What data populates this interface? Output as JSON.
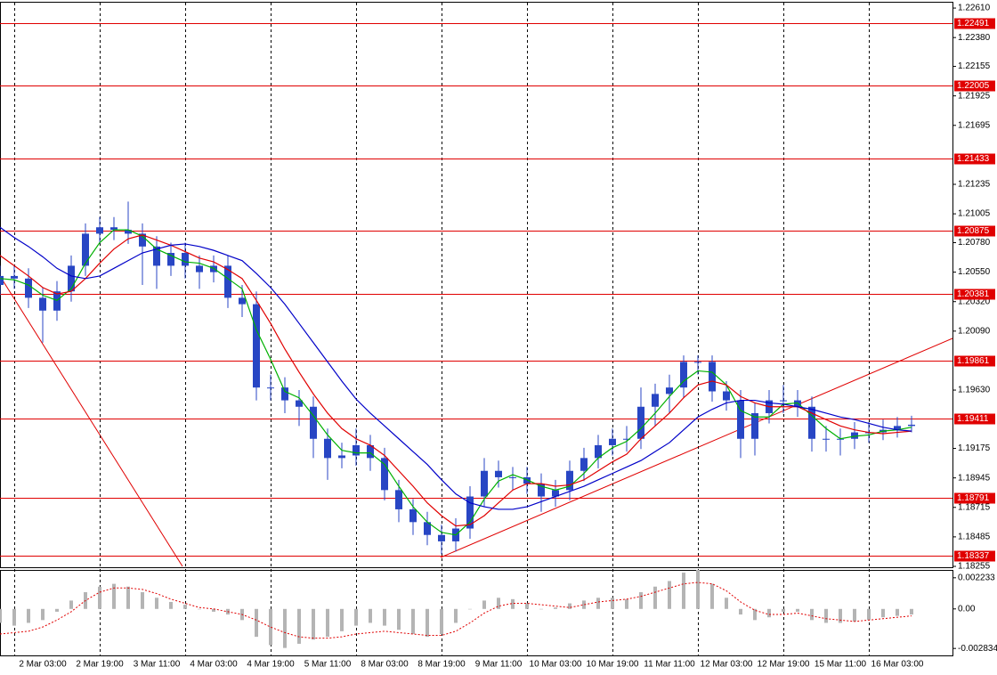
{
  "chart_data": [
    {
      "type": "candlestick",
      "categories": [
        null,
        null,
        null,
        "2 Mar 03:00",
        null,
        null,
        null,
        "2 Mar 19:00",
        null,
        null,
        null,
        "3 Mar 11:00",
        null,
        null,
        null,
        "4 Mar 03:00",
        null,
        null,
        null,
        "4 Mar 19:00",
        null,
        null,
        null,
        "5 Mar 11:00",
        null,
        null,
        null,
        "8 Mar 03:00",
        null,
        null,
        null,
        "8 Mar 19:00",
        null,
        null,
        null,
        "9 Mar 11:00",
        null,
        null,
        null,
        "10 Mar 03:00",
        null,
        null,
        null,
        "10 Mar 19:00",
        null,
        null,
        null,
        "11 Mar 11:00",
        null,
        null,
        null,
        "12 Mar 03:00",
        null,
        null,
        null,
        "12 Mar 19:00",
        null,
        null,
        null,
        "15 Mar 11:00",
        null,
        null,
        null,
        "16 Mar 03:00",
        null
      ],
      "open": [
        1.2045,
        1.2052,
        1.205,
        1.2035,
        1.2025,
        1.204,
        1.206,
        1.2085,
        1.209,
        1.2088,
        1.2085,
        1.2075,
        1.206,
        1.207,
        1.206,
        1.2055,
        1.206,
        1.2035,
        1.203,
        1.1965,
        1.1965,
        1.1955,
        1.195,
        1.1925,
        1.191,
        1.1912,
        1.192,
        1.191,
        1.1885,
        1.187,
        1.186,
        1.185,
        1.1845,
        1.1855,
        1.188,
        1.19,
        1.1895,
        1.1895,
        1.189,
        1.188,
        1.1885,
        1.19,
        1.191,
        1.192,
        1.1925,
        1.1925,
        1.195,
        1.196,
        1.1965,
        1.1985,
        1.1985,
        1.1962,
        1.1955,
        1.1925,
        1.1945,
        1.1955,
        1.1955,
        1.195,
        1.1925,
        1.1925,
        1.1925,
        1.193,
        1.193,
        1.1932,
        1.1935
      ],
      "high": [
        1.206,
        1.206,
        1.2058,
        1.2043,
        1.2048,
        1.2068,
        1.2093,
        1.2098,
        1.2098,
        1.211,
        1.2093,
        1.2083,
        1.2078,
        1.2078,
        1.2068,
        1.2068,
        1.2068,
        1.2045,
        1.204,
        1.1975,
        1.1973,
        1.1963,
        1.1958,
        1.1933,
        1.1922,
        1.1933,
        1.1928,
        1.1918,
        1.1893,
        1.1878,
        1.1868,
        1.1858,
        1.1863,
        1.1888,
        1.191,
        1.1908,
        1.1903,
        1.1903,
        1.1898,
        1.1893,
        1.1908,
        1.1918,
        1.1928,
        1.1933,
        1.1935,
        1.1965,
        1.1968,
        1.1975,
        1.199,
        1.199,
        1.199,
        1.197,
        1.1963,
        1.1953,
        1.1963,
        1.1967,
        1.1963,
        1.1958,
        1.1935,
        1.1933,
        1.1938,
        1.1938,
        1.194,
        1.1942,
        1.1943
      ],
      "low": [
        1.2037,
        1.2042,
        1.2027,
        1.2,
        1.2017,
        1.2032,
        1.2052,
        1.2077,
        1.208,
        1.2077,
        1.2045,
        1.2042,
        1.2052,
        1.205,
        1.2042,
        1.2047,
        1.2027,
        1.202,
        1.1955,
        1.1955,
        1.1945,
        1.1935,
        1.191,
        1.1893,
        1.1902,
        1.1904,
        1.19,
        1.1877,
        1.186,
        1.185,
        1.1842,
        1.1835,
        1.1837,
        1.1847,
        1.1872,
        1.1887,
        1.1885,
        1.1882,
        1.1868,
        1.1872,
        1.1877,
        1.1892,
        1.1902,
        1.1912,
        1.1915,
        1.1917,
        1.1935,
        1.1945,
        1.1957,
        1.1975,
        1.1954,
        1.1947,
        1.191,
        1.1912,
        1.1937,
        1.1945,
        1.1942,
        1.1915,
        1.1915,
        1.1912,
        1.1917,
        1.1922,
        1.1924,
        1.1926,
        1.193
      ],
      "close": [
        1.2052,
        1.205,
        1.2035,
        1.2025,
        1.204,
        1.206,
        1.2085,
        1.209,
        1.2088,
        1.2085,
        1.2075,
        1.206,
        1.207,
        1.206,
        1.2055,
        1.206,
        1.2035,
        1.203,
        1.1965,
        1.1965,
        1.1955,
        1.195,
        1.1925,
        1.191,
        1.1912,
        1.192,
        1.191,
        1.1885,
        1.187,
        1.186,
        1.185,
        1.1845,
        1.1855,
        1.188,
        1.19,
        1.1895,
        1.1895,
        1.189,
        1.188,
        1.1885,
        1.19,
        1.191,
        1.192,
        1.1925,
        1.1925,
        1.195,
        1.196,
        1.1965,
        1.1985,
        1.1985,
        1.1962,
        1.1955,
        1.1925,
        1.1945,
        1.1955,
        1.1955,
        1.195,
        1.1925,
        1.1925,
        1.1925,
        1.193,
        1.193,
        1.1932,
        1.1935,
        1.1936
      ],
      "color": "#2846c4",
      "series": [
        {
          "color": "#00b000",
          "values": [
            1.205,
            1.2049,
            1.2045,
            1.2037,
            1.2033,
            1.2042,
            1.2062,
            1.2078,
            1.2088,
            1.2088,
            1.2083,
            1.2073,
            1.2068,
            1.2063,
            1.2062,
            1.2058,
            1.205,
            1.2042,
            1.201,
            1.1987,
            1.1962,
            1.1957,
            1.1943,
            1.1928,
            1.1916,
            1.1914,
            1.1914,
            1.1905,
            1.1888,
            1.1872,
            1.186,
            1.1852,
            1.185,
            1.186,
            1.1878,
            1.1892,
            1.1897,
            1.1893,
            1.1888,
            1.1885,
            1.1888,
            1.1898,
            1.191,
            1.1918,
            1.1923,
            1.1933,
            1.1945,
            1.1958,
            1.197,
            1.1978,
            1.1977,
            1.1967,
            1.1947,
            1.1942,
            1.1942,
            1.1952,
            1.1953,
            1.1943,
            1.1933,
            1.1925,
            1.1927,
            1.1928,
            1.1931,
            1.1932,
            1.1934
          ]
        },
        {
          "color": "#e00000",
          "values": [
            1.2068,
            1.206,
            1.2052,
            1.2043,
            1.2038,
            1.204,
            1.205,
            1.2062,
            1.2073,
            1.2081,
            1.2084,
            1.208,
            1.2076,
            1.2071,
            1.2066,
            1.2063,
            1.2057,
            1.205,
            1.2033,
            1.2015,
            1.1995,
            1.1977,
            1.196,
            1.1945,
            1.1933,
            1.1925,
            1.192,
            1.1912,
            1.19,
            1.1888,
            1.1875,
            1.1865,
            1.1857,
            1.1858,
            1.1865,
            1.1875,
            1.1885,
            1.189,
            1.189,
            1.1888,
            1.1889,
            1.1893,
            1.19,
            1.1907,
            1.1913,
            1.1925,
            1.1935,
            1.1945,
            1.1957,
            1.1967,
            1.197,
            1.1967,
            1.1958,
            1.1953,
            1.195,
            1.195,
            1.195,
            1.1945,
            1.194,
            1.1935,
            1.1932,
            1.193,
            1.1929,
            1.193,
            1.1931
          ]
        },
        {
          "color": "#0000c8",
          "values": [
            1.209,
            1.2082,
            1.2075,
            1.2067,
            1.2058,
            1.2052,
            1.205,
            1.2052,
            1.2058,
            1.2064,
            1.207,
            1.2073,
            1.2076,
            1.2077,
            1.2075,
            1.2072,
            1.2068,
            1.2064,
            1.2054,
            1.2043,
            1.203,
            1.2015,
            1.2,
            1.1985,
            1.197,
            1.1956,
            1.1945,
            1.1935,
            1.1925,
            1.1915,
            1.1905,
            1.1893,
            1.1882,
            1.1875,
            1.1872,
            1.187,
            1.187,
            1.1872,
            1.1876,
            1.188,
            1.1884,
            1.1888,
            1.1893,
            1.1898,
            1.1903,
            1.1908,
            1.1915,
            1.1922,
            1.1932,
            1.1942,
            1.1948,
            1.1953,
            1.1955,
            1.1955,
            1.1953,
            1.1952,
            1.195,
            1.1948,
            1.1945,
            1.1942,
            1.194,
            1.1937,
            1.1934,
            1.1932,
            1.1931
          ]
        }
      ],
      "levels": {
        "color": "#e00000",
        "values": [
          1.22491,
          1.22005,
          1.21433,
          1.20875,
          1.20381,
          1.19861,
          1.19411,
          1.18791,
          1.18337
        ]
      },
      "ylim": [
        1.18248,
        1.22659
      ],
      "yticks": [
        {
          "value": 1.2261,
          "label": "1.22610"
        },
        {
          "value": 1.2238,
          "label": "1.22380"
        },
        1.22155,
        1.21925,
        1.21695,
        1.21235,
        1.21005,
        {
          "value": 1.2078,
          "label": "1.20780"
        },
        {
          "value": 1.2055,
          "label": "1.20550"
        },
        {
          "value": 1.2032,
          "label": "1.20320"
        },
        {
          "value": 1.2009,
          "label": "1.20090"
        },
        {
          "value": 1.1963,
          "label": "1.19630"
        },
        1.19175,
        1.18945,
        1.18715,
        1.18485,
        1.18255
      ],
      "grid": true
    },
    {
      "type": "macd",
      "histogram": {
        "color": "#b4b4b4",
        "values": [
          -0.001,
          -0.0012,
          -0.001,
          -0.0008,
          -0.0002,
          0.0006,
          0.0012,
          0.0016,
          0.0018,
          0.0016,
          0.0012,
          0.0008,
          0.0005,
          0.0003,
          0.0,
          -0.0002,
          -0.0004,
          -0.0008,
          -0.002,
          -0.0026,
          -0.0028,
          -0.0025,
          -0.0022,
          -0.002,
          -0.0016,
          -0.0012,
          -0.001,
          -0.0012,
          -0.0015,
          -0.0018,
          -0.002,
          -0.0018,
          -0.001,
          0.0,
          0.0006,
          0.0008,
          0.0007,
          0.0004,
          0.0,
          0.0001,
          0.0004,
          0.0006,
          0.0008,
          0.0008,
          0.0007,
          0.0012,
          0.0016,
          0.002,
          0.0026,
          0.0028,
          0.0018,
          0.0008,
          -0.0004,
          -0.0008,
          -0.0006,
          -0.0002,
          -0.0002,
          -0.0008,
          -0.001,
          -0.001,
          -0.0009,
          -0.0008,
          -0.0006,
          -0.0005,
          -0.0004
        ]
      },
      "signal": {
        "color": "#e00000",
        "values": [
          -0.0018,
          -0.0017,
          -0.0016,
          -0.0013,
          -0.0008,
          -0.0002,
          0.0006,
          0.0012,
          0.0015,
          0.0015,
          0.0014,
          0.0011,
          0.0007,
          0.0004,
          0.0001,
          0.0,
          -0.0002,
          -0.0004,
          -0.0008,
          -0.0013,
          -0.0017,
          -0.002,
          -0.0021,
          -0.0021,
          -0.002,
          -0.0018,
          -0.0017,
          -0.0016,
          -0.0017,
          -0.0018,
          -0.0019,
          -0.0019,
          -0.0016,
          -0.001,
          -0.0003,
          0.0002,
          0.0004,
          0.0004,
          0.0003,
          0.0002,
          0.0001,
          0.0003,
          0.0005,
          0.0006,
          0.0007,
          0.0009,
          0.0012,
          0.0015,
          0.0018,
          0.0019,
          0.0018,
          0.0013,
          0.0005,
          -0.0001,
          -0.0004,
          -0.0004,
          -0.0003,
          -0.0005,
          -0.0007,
          -0.0008,
          -0.0009,
          -0.0008,
          -0.0007,
          -0.0006,
          -0.0005
        ]
      },
      "ylim": [
        -0.003334,
        0.002733
      ],
      "yticks": [
        0.002233,
        {
          "value": 0,
          "label": "0.00"
        },
        -0.002834
      ]
    }
  ]
}
